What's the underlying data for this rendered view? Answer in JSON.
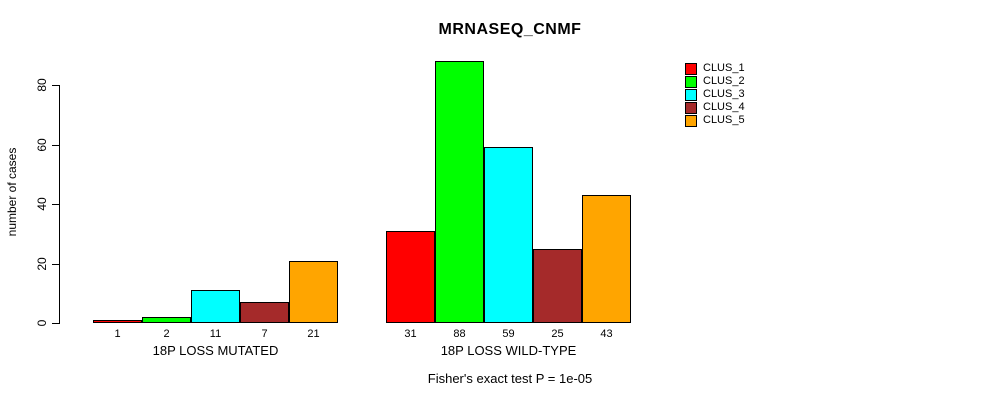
{
  "figure": {
    "title": "MRNASEQ_CNMF",
    "caption": "Fisher's exact test P = 1e-05"
  },
  "chart_data": {
    "type": "bar",
    "title": "MRNASEQ_CNMF",
    "xlabel": "",
    "ylabel": "number of cases",
    "categories": [
      "18P LOSS MUTATED",
      "18P LOSS WILD-TYPE"
    ],
    "series": [
      {
        "name": "CLUS_1",
        "color": "#FF0000",
        "values": [
          1,
          31
        ]
      },
      {
        "name": "CLUS_2",
        "color": "#00FF00",
        "values": [
          2,
          88
        ]
      },
      {
        "name": "CLUS_3",
        "color": "#00FFFF",
        "values": [
          11,
          59
        ]
      },
      {
        "name": "CLUS_4",
        "color": "#A52A2A",
        "values": [
          7,
          25
        ]
      },
      {
        "name": "CLUS_5",
        "color": "#FFA500",
        "values": [
          21,
          43
        ]
      }
    ],
    "bar_value_labels": [
      [
        1,
        2,
        11,
        7,
        21
      ],
      [
        31,
        88,
        59,
        25,
        43
      ]
    ],
    "yticks": [
      0,
      20,
      40,
      60,
      80
    ],
    "ylim": [
      0,
      88
    ],
    "grid": false,
    "legend_position": "top-right",
    "annotation": "Fisher's exact test P = 1e-05"
  },
  "legend": {
    "entries": [
      {
        "label": "CLUS_1",
        "color": "#FF0000"
      },
      {
        "label": "CLUS_2",
        "color": "#00FF00"
      },
      {
        "label": "CLUS_3",
        "color": "#00FFFF"
      },
      {
        "label": "CLUS_4",
        "color": "#A52A2A"
      },
      {
        "label": "CLUS_5",
        "color": "#FFA500"
      }
    ]
  }
}
